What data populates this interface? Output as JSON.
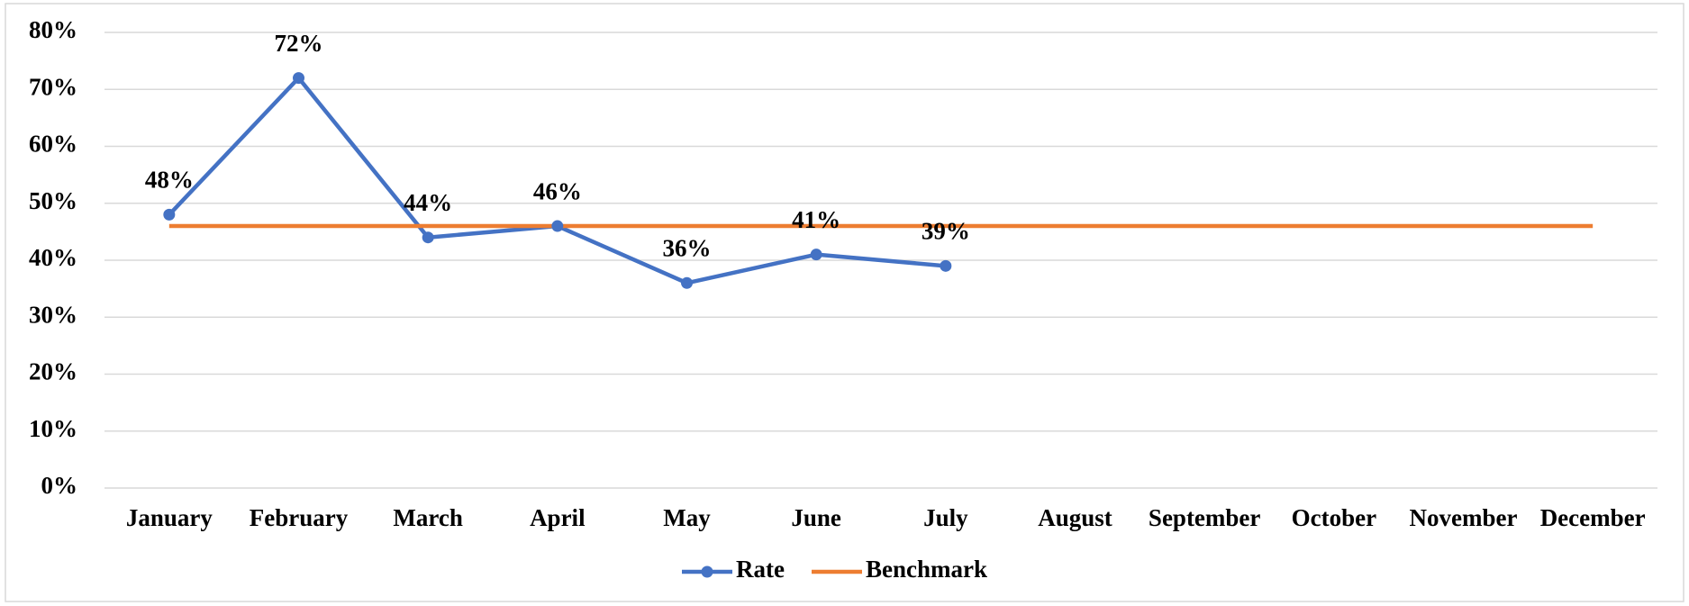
{
  "chart_data": {
    "type": "line",
    "categories": [
      "January",
      "February",
      "March",
      "April",
      "May",
      "June",
      "July",
      "August",
      "September",
      "October",
      "November",
      "December"
    ],
    "series": [
      {
        "name": "Rate",
        "color": "#4472c4",
        "marker": "circle",
        "values": [
          48,
          72,
          44,
          46,
          36,
          41,
          39,
          null,
          null,
          null,
          null,
          null
        ],
        "value_labels": [
          "48%",
          "72%",
          "44%",
          "46%",
          "36%",
          "41%",
          "39%",
          null,
          null,
          null,
          null,
          null
        ]
      },
      {
        "name": "Benchmark",
        "color": "#ed7d31",
        "values": [
          46,
          46,
          46,
          46,
          46,
          46,
          46,
          46,
          46,
          46,
          46,
          46
        ]
      }
    ],
    "ylim": [
      0,
      80
    ],
    "yticks": [
      {
        "value": 0,
        "label": "0%"
      },
      {
        "value": 10,
        "label": "10%"
      },
      {
        "value": 20,
        "label": "20%"
      },
      {
        "value": 30,
        "label": "30%"
      },
      {
        "value": 40,
        "label": "40%"
      },
      {
        "value": 50,
        "label": "50%"
      },
      {
        "value": 60,
        "label": "60%"
      },
      {
        "value": 70,
        "label": "70%"
      },
      {
        "value": 80,
        "label": "80%"
      }
    ],
    "grid": true,
    "legend": "bottom"
  }
}
